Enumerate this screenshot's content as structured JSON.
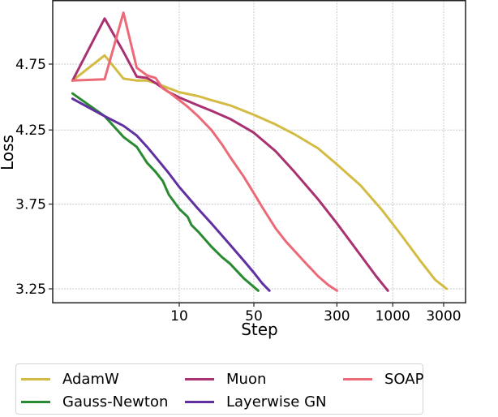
{
  "chart_data": {
    "type": "line",
    "title": "",
    "xlabel": "Step",
    "ylabel": "Loss",
    "xscale": "log",
    "yscale": "log",
    "xlim": [
      0.72,
      5200
    ],
    "ylim": [
      3.15,
      5.3
    ],
    "grid": true,
    "legend_position": "bottom",
    "x_ticks": [
      10,
      50,
      300,
      1000,
      3000
    ],
    "x_tick_labels": [
      "10",
      "50",
      "300",
      "1000",
      "3000"
    ],
    "y_ticks": [
      4.75,
      4.25,
      3.75,
      3.25
    ],
    "y_tick_labels": [
      "4.75",
      "4.25",
      "3.75",
      "3.25"
    ],
    "series": [
      {
        "name": "AdamW",
        "color": "#d4bb44",
        "x": [
          1,
          2,
          3,
          4,
          5,
          6,
          8,
          10,
          15,
          20,
          30,
          50,
          80,
          120,
          200,
          300,
          500,
          800,
          1200,
          1800,
          2500,
          3200
        ],
        "y": [
          4.62,
          4.82,
          4.635,
          4.62,
          4.62,
          4.6,
          4.56,
          4.53,
          4.5,
          4.47,
          4.43,
          4.36,
          4.29,
          4.22,
          4.12,
          4.01,
          3.87,
          3.71,
          3.56,
          3.41,
          3.3,
          3.25
        ]
      },
      {
        "name": "Gauss-Newton",
        "color": "#2a8a32",
        "x": [
          1,
          2,
          3,
          4,
          5,
          6,
          7,
          8,
          10,
          12,
          13,
          15,
          20,
          25,
          30,
          40,
          50,
          55
        ],
        "y": [
          4.52,
          4.35,
          4.2,
          4.13,
          4.02,
          3.96,
          3.9,
          3.81,
          3.72,
          3.67,
          3.62,
          3.58,
          3.49,
          3.43,
          3.39,
          3.31,
          3.26,
          3.24
        ]
      },
      {
        "name": "Muon",
        "color": "#a93171",
        "x": [
          1,
          2,
          3,
          4,
          5,
          6,
          8,
          10,
          15,
          20,
          30,
          50,
          80,
          120,
          200,
          300,
          500,
          700,
          900
        ],
        "y": [
          4.62,
          5.13,
          4.85,
          4.65,
          4.64,
          4.6,
          4.53,
          4.49,
          4.43,
          4.39,
          4.33,
          4.23,
          4.1,
          3.96,
          3.78,
          3.63,
          3.44,
          3.32,
          3.24
        ]
      },
      {
        "name": "Layerwise GN",
        "color": "#6030a0",
        "x": [
          1,
          2,
          3,
          4,
          5,
          6,
          8,
          10,
          15,
          20,
          30,
          40,
          50,
          60,
          70
        ],
        "y": [
          4.48,
          4.35,
          4.28,
          4.21,
          4.13,
          4.06,
          3.95,
          3.86,
          3.72,
          3.63,
          3.5,
          3.41,
          3.34,
          3.28,
          3.24
        ]
      },
      {
        "name": "SOAP",
        "color": "#ec6a78",
        "x": [
          1,
          2,
          3,
          4,
          5,
          6,
          7,
          8,
          10,
          12,
          15,
          20,
          25,
          30,
          40,
          50,
          60,
          80,
          100,
          150,
          200,
          250,
          300
        ],
        "y": [
          4.62,
          4.63,
          5.18,
          4.72,
          4.66,
          4.64,
          4.56,
          4.53,
          4.47,
          4.42,
          4.35,
          4.25,
          4.15,
          4.06,
          3.93,
          3.82,
          3.73,
          3.6,
          3.52,
          3.4,
          3.32,
          3.27,
          3.24
        ]
      }
    ]
  },
  "legend": {
    "items": [
      {
        "label": "AdamW",
        "color": "#d4bb44"
      },
      {
        "label": "Muon",
        "color": "#a93171"
      },
      {
        "label": "SOAP",
        "color": "#ec6a78"
      },
      {
        "label": "Gauss-Newton",
        "color": "#2a8a32"
      },
      {
        "label": "Layerwise GN",
        "color": "#6030a0"
      }
    ]
  }
}
